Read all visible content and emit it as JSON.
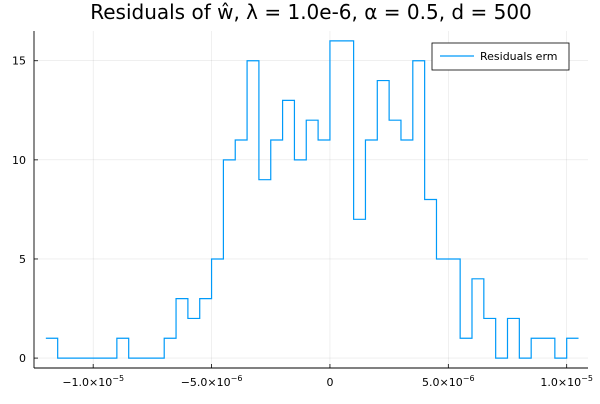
{
  "chart_data": {
    "type": "histogram",
    "title": "Residuals of ŵ, λ = 1.0e-6, α = 0.5, d = 500",
    "xlabel": "",
    "ylabel": "",
    "xlim": [
      -1.25e-05,
      1.09e-05
    ],
    "ylim": [
      -0.5,
      16.5
    ],
    "grid": true,
    "legend_position": "top-right",
    "xticks": [
      {
        "value": -1e-05,
        "mantissa": "−1.0×10",
        "exp": "−5"
      },
      {
        "value": -5e-06,
        "mantissa": "−5.0×10",
        "exp": "−6"
      },
      {
        "value": 0,
        "mantissa": "0",
        "exp": ""
      },
      {
        "value": 5e-06,
        "mantissa": "5.0×10",
        "exp": "−6"
      },
      {
        "value": 1e-05,
        "mantissa": "1.0×10",
        "exp": "−5"
      }
    ],
    "yticks": [
      {
        "value": 0,
        "label": "0"
      },
      {
        "value": 5,
        "label": "5"
      },
      {
        "value": 10,
        "label": "10"
      },
      {
        "value": 15,
        "label": "15"
      }
    ],
    "series": [
      {
        "name": "Residuals erm",
        "color": "#009AF9",
        "bin_start": -1.2e-05,
        "bin_width": 5e-07,
        "counts": [
          1,
          0,
          0,
          0,
          0,
          0,
          1,
          0,
          0,
          0,
          1,
          3,
          2,
          3,
          5,
          10,
          11,
          15,
          9,
          11,
          13,
          10,
          12,
          11,
          16,
          16,
          7,
          11,
          14,
          12,
          11,
          15,
          8,
          5,
          5,
          1,
          4,
          2,
          0,
          2,
          0,
          1,
          1,
          0,
          1
        ]
      }
    ]
  }
}
